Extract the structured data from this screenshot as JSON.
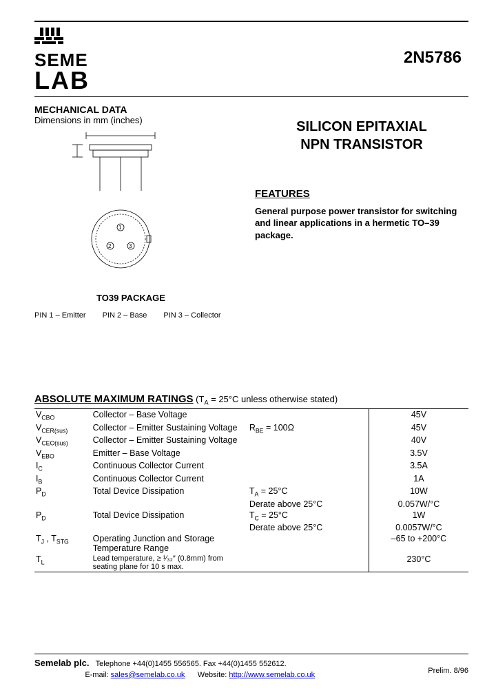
{
  "logo": {
    "line1": "SEME",
    "line2": "LAB"
  },
  "part_number": "2N5786",
  "mechanical": {
    "title": "MECHANICAL DATA",
    "subtitle": "Dimensions in mm (inches)",
    "package_label": "TO39 PACKAGE",
    "pins": [
      "PIN 1 – Emitter",
      "PIN 2 – Base",
      "PIN 3 – Collector"
    ]
  },
  "product": {
    "title_l1": "SILICON EPITAXIAL",
    "title_l2": "NPN TRANSISTOR"
  },
  "features": {
    "title": "FEATURES",
    "body": "General purpose power transistor for switching and linear applications in a hermetic TO–39 package."
  },
  "ratings": {
    "title": "ABSOLUTE MAXIMUM RATINGS",
    "condition": " (T",
    "condition_sub": "A",
    "condition_rest": " = 25°C unless otherwise stated)",
    "rows": [
      {
        "sym": "V",
        "sub": "CBO",
        "desc": "Collector – Base Voltage",
        "cond": "",
        "val": "45V"
      },
      {
        "sym": "V",
        "sub": "CER(sus)",
        "desc": "Collector – Emitter Sustaining Voltage",
        "cond": "R<sub>BE</sub> = 100Ω",
        "val": "45V"
      },
      {
        "sym": "V",
        "sub": "CEO(sus)",
        "desc": "Collector – Emitter Sustaining Voltage",
        "cond": "",
        "val": "40V"
      },
      {
        "sym": "V",
        "sub": "EBO",
        "desc": "Emitter – Base Voltage",
        "cond": "",
        "val": "3.5V"
      },
      {
        "sym": "I",
        "sub": "C",
        "desc": "Continuous Collector Current",
        "cond": "",
        "val": "3.5A"
      },
      {
        "sym": "I",
        "sub": "B",
        "desc": "Continuous Collector Current",
        "cond": "",
        "val": "1A"
      },
      {
        "sym": "P",
        "sub": "D",
        "desc": "Total Device Dissipation",
        "cond": "T<sub>A</sub> = 25°C",
        "val": "10W"
      },
      {
        "sym": "",
        "sub": "",
        "desc": "",
        "cond": "Derate above 25°C",
        "val": "0.057W/°C"
      },
      {
        "sym": "P",
        "sub": "D",
        "desc": "Total Device Dissipation",
        "cond": "T<sub>C</sub> = 25°C",
        "val": "1W"
      },
      {
        "sym": "",
        "sub": "",
        "desc": "",
        "cond": "Derate above 25°C",
        "val": "0.0057W/°C"
      },
      {
        "sym": "T",
        "sub": "J",
        "sym2": " , T",
        "sub2": "STG",
        "desc": "Operating Junction and Storage Temperature Range",
        "cond": "",
        "val": "–65 to +200°C"
      },
      {
        "sym": "T",
        "sub": "L",
        "desc": "Lead temperature, ≥ ¹⁄₃₂″ (0.8mm) from seating plane for 10 s max.",
        "cond": "",
        "val": "230°C",
        "desc_small": true
      }
    ]
  },
  "footer": {
    "company": "Semelab plc.",
    "phone": "Telephone +44(0)1455 556565.  Fax +44(0)1455 552612.",
    "email_label": "E-mail: ",
    "email": "sales@semelab.co.uk",
    "website_label": "      Website: ",
    "website": "http://www.semelab.co.uk",
    "prelim": "Prelim. 8/96"
  },
  "colors": {
    "text": "#000000",
    "link": "#0000cc",
    "bg": "#ffffff"
  }
}
